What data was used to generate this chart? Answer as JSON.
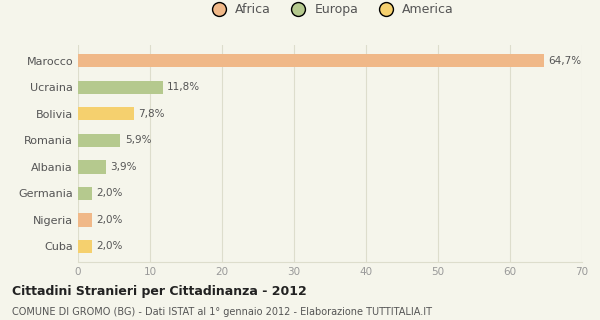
{
  "categories": [
    "Marocco",
    "Ucraina",
    "Bolivia",
    "Romania",
    "Albania",
    "Germania",
    "Nigeria",
    "Cuba"
  ],
  "values": [
    64.7,
    11.8,
    7.8,
    5.9,
    3.9,
    2.0,
    2.0,
    2.0
  ],
  "labels": [
    "64,7%",
    "11,8%",
    "7,8%",
    "5,9%",
    "3,9%",
    "2,0%",
    "2,0%",
    "2,0%"
  ],
  "colors": [
    "#f0b888",
    "#b5c98e",
    "#f5d06e",
    "#b5c98e",
    "#b5c98e",
    "#b5c98e",
    "#f0b888",
    "#f5d06e"
  ],
  "legend_labels": [
    "Africa",
    "Europa",
    "America"
  ],
  "legend_colors": [
    "#f0b888",
    "#b5c98e",
    "#f5d06e"
  ],
  "title": "Cittadini Stranieri per Cittadinanza - 2012",
  "subtitle": "COMUNE DI GROMO (BG) - Dati ISTAT al 1° gennaio 2012 - Elaborazione TUTTITALIA.IT",
  "xlim": [
    0,
    70
  ],
  "xticks": [
    0,
    10,
    20,
    30,
    40,
    50,
    60,
    70
  ],
  "background_color": "#f5f5eb",
  "grid_color": "#ddddcc",
  "bar_height": 0.5
}
